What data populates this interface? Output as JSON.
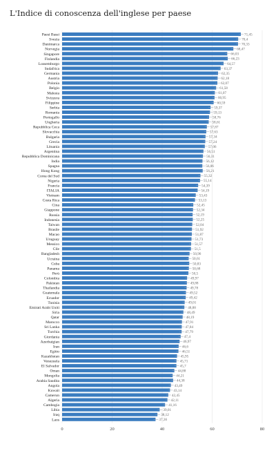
{
  "chart_data": {
    "type": "bar",
    "orientation": "horizontal",
    "title": "L'Indice di conoscenza dell'inglese per paese",
    "xlim": [
      0,
      80
    ],
    "xticks": [
      0,
      20,
      40,
      60,
      80
    ],
    "grid": true,
    "bar_color": "#3a7cc0",
    "categories": [
      "Paesi Bassi",
      "Svezia",
      "Danimarca",
      "Norvegia",
      "Singapore",
      "Finlandia",
      "Lussemburgo",
      "Sudafrica",
      "Germania",
      "Austria",
      "Polonia",
      "Belgio",
      "Malesia",
      "Svizzera",
      "Filippine",
      "Serbia",
      "Romania",
      "Portogallo",
      "Ungheria",
      "Repubblica Ceca",
      "Slovacchia",
      "Bulgaria",
      "Grecia",
      "Lituania",
      "Argentina",
      "Repubblica Dominicana",
      "India",
      "Spagna",
      "Hong Kong",
      "Corea del Sud",
      "Nigeria",
      "Francia",
      "ITALIA",
      "Vietnam",
      "Costa Rica",
      "Cina",
      "Giappone",
      "Russia",
      "Indonesia",
      "Taiwan",
      "Brasile",
      "Macao",
      "Uruguay",
      "Messico",
      "Cile",
      "Bangladesh",
      "Ucraina",
      "Cuba",
      "Panama",
      "Perù",
      "Colombia",
      "Pakistan",
      "Thailandia",
      "Guatemala",
      "Ecuador",
      "Tunisia",
      "Emirati Arabi Uniti",
      "Siria",
      "Qatar",
      "Marocco",
      "Sri Lanka",
      "Turchia",
      "Giordania",
      "Azerbaigian",
      "Iran",
      "Egitto",
      "Kazakhstan",
      "Venezuela",
      "El Salvador",
      "Oman",
      "Mongolia",
      "Arabia Saudita",
      "Angola",
      "Kuwait",
      "Camerun",
      "Algeria",
      "Cambogia",
      "Libia",
      "Iraq",
      "Laos"
    ],
    "values": [
      71.45,
      70.4,
      70.33,
      68.47,
      66.03,
      66.23,
      64.57,
      63.37,
      62.35,
      62.18,
      62.07,
      61.58,
      61.07,
      60.95,
      60.59,
      59.37,
      59.13,
      58.76,
      58.61,
      57.87,
      57.63,
      57.34,
      57.24,
      57.06,
      56.51,
      56.31,
      56.12,
      56.06,
      56.21,
      55.32,
      55.14,
      54.39,
      54.19,
      53.43,
      53.13,
      52.45,
      52.34,
      52.19,
      52.25,
      52.04,
      51.92,
      51.87,
      51.73,
      51.57,
      51.5,
      50.96,
      50.61,
      50.83,
      50.68,
      50.5,
      49.97,
      49.88,
      49.78,
      49.52,
      49.42,
      49.01,
      48.88,
      48.49,
      48.19,
      47.91,
      47.84,
      47.79,
      47.4,
      46.97,
      46.6,
      46.51,
      45.95,
      45.71,
      45.7,
      44.88,
      44.21,
      44.38,
      43.49,
      43.14,
      42.45,
      42.11,
      41.16,
      39.01,
      38.12,
      37.36
    ],
    "value_labels": [
      "71,45",
      "70,4",
      "70,33",
      "68,47",
      "66,03",
      "66,23",
      "64,57",
      "63,37",
      "62,35",
      "62,18",
      "62,07",
      "61,58",
      "61,07",
      "60,95",
      "60,59",
      "59,37",
      "59,13",
      "58,76",
      "58,61",
      "57,87",
      "57,63",
      "57,34",
      "57,24",
      "57,06",
      "56,51",
      "56,31",
      "56,12",
      "56,06",
      "56,21",
      "55,32",
      "55,14",
      "54,39",
      "54,19",
      "53,43",
      "53,13",
      "52,45",
      "52,34",
      "52,19",
      "52,25",
      "52,04",
      "51,92",
      "51,87",
      "51,73",
      "51,57",
      "51,5",
      "50,96",
      "50,61",
      "50,83",
      "50,68",
      "50,5",
      "49,97",
      "49,88",
      "49,78",
      "49,52",
      "49,42",
      "49,01",
      "48,88",
      "48,49",
      "48,19",
      "47,91",
      "47,84",
      "47,79",
      "47,4",
      "46,97",
      "46,6",
      "46,51",
      "45,95",
      "45,71",
      "45,7",
      "44,88",
      "44,21",
      "44,38",
      "43,49",
      "43,14",
      "42,45",
      "42,11",
      "41,16",
      "39,01",
      "38,12",
      "37,36"
    ]
  }
}
